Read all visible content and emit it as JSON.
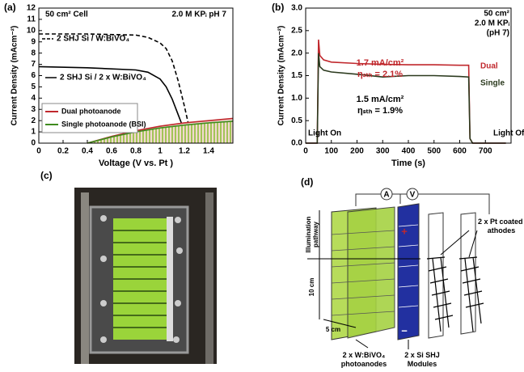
{
  "chart_data": [
    {
      "type": "line",
      "panel_label": "(a)",
      "x_label": "Voltage (V vs. Pt )",
      "y_label": "Current Density (mAcm⁻²)",
      "annotations": [
        "50 cm² Cell",
        "2.0 M KPᵢ pH 7"
      ],
      "xlim": [
        0,
        1.6
      ],
      "xticks": [
        0,
        0.2,
        0.4,
        0.6,
        0.8,
        1,
        1.2,
        1.4
      ],
      "ylim": [
        0,
        12
      ],
      "yticks": [
        0,
        1,
        2,
        3,
        4,
        5,
        6,
        7,
        8,
        9,
        10,
        11,
        12
      ],
      "series": [
        {
          "name": "2 SHJ Si / W:BiVO₄",
          "color": "#000000",
          "dashed": true,
          "x": [
            0,
            0.4,
            0.8,
            0.9,
            1.0,
            1.05,
            1.1,
            1.15,
            1.2,
            1.25
          ],
          "values": [
            9.7,
            9.7,
            9.6,
            9.4,
            8.9,
            8.4,
            7.3,
            5.5,
            3.3,
            0.9
          ]
        },
        {
          "name": "2 SHJ Si / 2 x W:BiVO₄",
          "color": "#000000",
          "dashed": false,
          "x": [
            0,
            0.4,
            0.8,
            0.9,
            1.0,
            1.05,
            1.1,
            1.15,
            1.2,
            1.23
          ],
          "values": [
            6.8,
            6.7,
            6.5,
            6.3,
            5.7,
            5.0,
            3.9,
            2.5,
            1.1,
            0
          ]
        },
        {
          "name": "Dual photoanode",
          "color": "#c0282d",
          "dashed": false,
          "fill": true,
          "x": [
            0.4,
            0.6,
            0.8,
            1.0,
            1.2,
            1.4,
            1.6
          ],
          "values": [
            0,
            0.6,
            1.1,
            1.5,
            1.8,
            2.0,
            2.2
          ]
        },
        {
          "name": "Single photoanode (BSI)",
          "color": "#3f8a1e",
          "dashed": false,
          "fill": true,
          "x": [
            0.4,
            0.6,
            0.8,
            1.0,
            1.2,
            1.4,
            1.6
          ],
          "values": [
            0,
            0.55,
            1.0,
            1.35,
            1.6,
            1.8,
            1.95
          ]
        }
      ]
    },
    {
      "type": "line",
      "panel_label": "(b)",
      "x_label": "Time (s)",
      "y_label": "Current Density (mAcm⁻²)",
      "annotations": [
        "50 cm²",
        "2.0 M KPᵢ",
        "(pH 7)",
        "1.7 mA/cm²",
        "ηₛₜₕ = 2.1%",
        "1.5 mA/cm²",
        "ηₛₜₕ = 1.9%",
        "Light On",
        "Light Off"
      ],
      "xlim": [
        0,
        800
      ],
      "xticks": [
        0,
        100,
        200,
        300,
        400,
        500,
        600,
        700
      ],
      "ylim": [
        0,
        3
      ],
      "yticks": [
        {
          "value": 0,
          "label": "0.0"
        },
        0.5,
        {
          "value": 1,
          "label": "1.0"
        },
        1.5,
        {
          "value": 2,
          "label": "2.0"
        },
        2.5,
        {
          "value": 3,
          "label": "3.0"
        }
      ],
      "x": [
        0,
        45,
        50,
        55,
        70,
        100,
        200,
        300,
        400,
        500,
        600,
        635,
        640,
        650,
        700,
        780
      ],
      "series": [
        {
          "name": "Dual",
          "color": "#c0282d",
          "values": [
            0,
            0,
            2.3,
            1.95,
            1.85,
            1.8,
            1.77,
            1.75,
            1.74,
            1.74,
            1.73,
            1.73,
            0.1,
            0,
            0,
            0
          ]
        },
        {
          "name": "Single",
          "color": "#2b3a1e",
          "values": [
            0,
            0,
            2.0,
            1.7,
            1.62,
            1.58,
            1.53,
            1.47,
            1.5,
            1.5,
            1.48,
            1.47,
            0.1,
            0,
            0,
            0
          ]
        }
      ]
    }
  ],
  "panels": {
    "c_label": "(c)",
    "d_label": "(d)",
    "d_texts": [
      "A",
      "V",
      "+",
      "−",
      "2 x Pt coated cathodes",
      "Illumination pathway",
      "10 cm",
      "5 cm",
      "2 x W:BiVO₄ photoanodes",
      "2 x Si SHJ Modules"
    ]
  }
}
